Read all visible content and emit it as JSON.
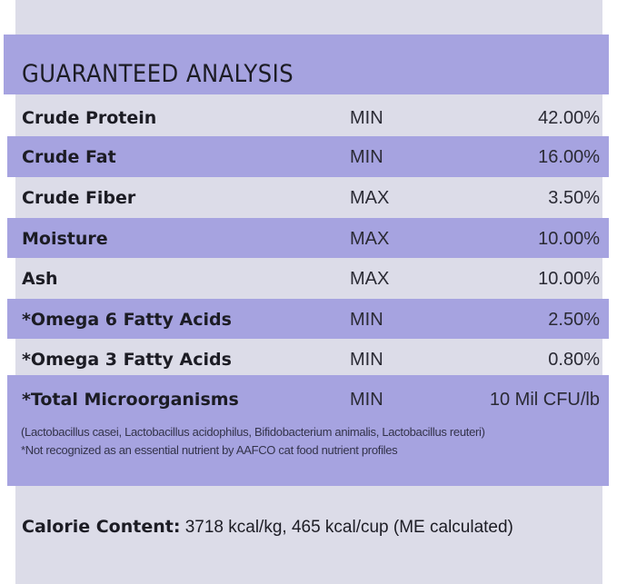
{
  "title": "GUARANTEED ANALYSIS",
  "colors": {
    "band": "#a6a3e0",
    "panel": "#dcdce8"
  },
  "rows": [
    {
      "name": "Crude Protein",
      "type": "MIN",
      "value": "42.00%"
    },
    {
      "name": "Crude Fat",
      "type": "MIN",
      "value": "16.00%"
    },
    {
      "name": "Crude Fiber",
      "type": "MAX",
      "value": "3.50%"
    },
    {
      "name": "Moisture",
      "type": "MAX",
      "value": "10.00%"
    },
    {
      "name": "Ash",
      "type": "MAX",
      "value": "10.00%"
    },
    {
      "name": "*Omega 6 Fatty Acids",
      "type": "MIN",
      "value": "2.50%"
    },
    {
      "name": "*Omega 3 Fatty Acids",
      "type": "MIN",
      "value": "0.80%"
    },
    {
      "name": "*Total Microorganisms",
      "type": "MIN",
      "value": "10 Mil CFU/lb"
    }
  ],
  "notes": [
    "(Lactobacillus casei, Lactobacillus acidophilus, Bifidobacterium animalis, Lactobacillus reuteri)",
    "*Not recognized as an essential nutrient by AAFCO cat food nutrient profiles"
  ],
  "calorie": {
    "label": "Calorie Content:",
    "value": "3718 kcal/kg, 465 kcal/cup (ME calculated)"
  }
}
